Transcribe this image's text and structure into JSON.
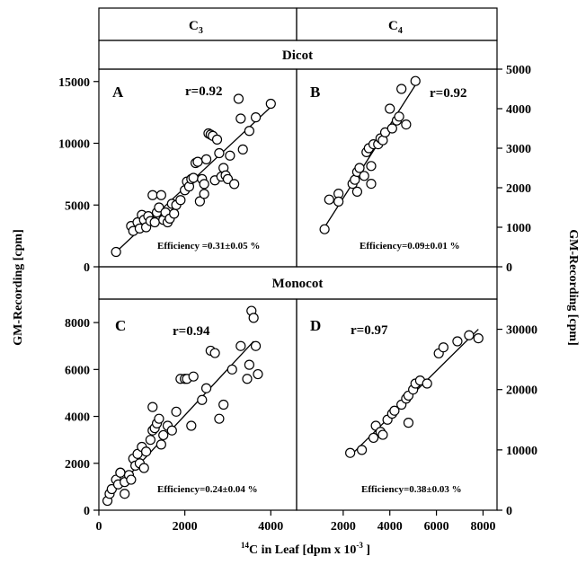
{
  "figure": {
    "header": {
      "col_left": "C",
      "col_left_sub": "3",
      "col_right": "C",
      "col_right_sub": "4"
    },
    "rows": {
      "top": "Dicot",
      "bottom": "Monocot"
    },
    "ylabel_left": "GM-Recording [cpm]",
    "ylabel_right": "GM-Recording [cpm]",
    "xlabel_prefix_sup": "14",
    "xlabel_main": "C in Leaf [dpm x 10",
    "xlabel_exp": "-3",
    "xlabel_close": " ]"
  },
  "chart_data": [
    {
      "panel": "A",
      "type": "scatter",
      "r_label": "r=0.92",
      "efficiency_label": "Efficiency =0.31±0.05 %",
      "xlim": [
        0,
        4600
      ],
      "ylim": [
        0,
        16000
      ],
      "yticks": [
        0,
        5000,
        10000,
        15000
      ],
      "xticks": [],
      "fit": [
        [
          400,
          1200
        ],
        [
          4050,
          13100
        ]
      ],
      "points": [
        [
          400,
          1200
        ],
        [
          750,
          3300
        ],
        [
          800,
          2900
        ],
        [
          900,
          3600
        ],
        [
          950,
          3100
        ],
        [
          1000,
          4200
        ],
        [
          1050,
          3800
        ],
        [
          1100,
          3200
        ],
        [
          1150,
          4100
        ],
        [
          1200,
          3700
        ],
        [
          1250,
          5800
        ],
        [
          1300,
          3600
        ],
        [
          1350,
          4400
        ],
        [
          1400,
          4800
        ],
        [
          1450,
          5800
        ],
        [
          1500,
          3800
        ],
        [
          1550,
          4400
        ],
        [
          1600,
          3600
        ],
        [
          1650,
          3900
        ],
        [
          1700,
          5100
        ],
        [
          1750,
          4300
        ],
        [
          1800,
          5000
        ],
        [
          1900,
          5400
        ],
        [
          2000,
          6200
        ],
        [
          2050,
          6900
        ],
        [
          2100,
          6500
        ],
        [
          2150,
          7100
        ],
        [
          2200,
          7200
        ],
        [
          2250,
          8400
        ],
        [
          2300,
          8500
        ],
        [
          2350,
          5300
        ],
        [
          2400,
          7100
        ],
        [
          2450,
          6700
        ],
        [
          2450,
          5900
        ],
        [
          2500,
          8700
        ],
        [
          2550,
          10800
        ],
        [
          2600,
          10700
        ],
        [
          2650,
          10600
        ],
        [
          2700,
          7000
        ],
        [
          2750,
          10300
        ],
        [
          2800,
          9200
        ],
        [
          2850,
          7300
        ],
        [
          2900,
          8000
        ],
        [
          2950,
          7400
        ],
        [
          3000,
          7100
        ],
        [
          3050,
          9000
        ],
        [
          3150,
          6700
        ],
        [
          3250,
          13600
        ],
        [
          3350,
          9500
        ],
        [
          3500,
          11000
        ],
        [
          3650,
          12100
        ],
        [
          4000,
          13200
        ],
        [
          3300,
          12000
        ]
      ]
    },
    {
      "panel": "B",
      "type": "scatter",
      "r_label": "r=0.92",
      "efficiency_label": "Efficiency=0.09±0.01 %",
      "xlim": [
        0,
        8600
      ],
      "ylim": [
        0,
        5000
      ],
      "yticks": [
        0,
        1000,
        2000,
        3000,
        4000,
        5000
      ],
      "xticks": [],
      "fit": [
        [
          1200,
          1000
        ],
        [
          5100,
          4600
        ]
      ],
      "points": [
        [
          1200,
          950
        ],
        [
          1400,
          1700
        ],
        [
          1800,
          1850
        ],
        [
          1800,
          1650
        ],
        [
          2400,
          2100
        ],
        [
          2500,
          2200
        ],
        [
          2600,
          2400
        ],
        [
          2700,
          2500
        ],
        [
          2900,
          2300
        ],
        [
          3000,
          2900
        ],
        [
          3100,
          3000
        ],
        [
          3200,
          2550
        ],
        [
          3200,
          2100
        ],
        [
          3300,
          3100
        ],
        [
          3500,
          3100
        ],
        [
          3600,
          3250
        ],
        [
          3700,
          3200
        ],
        [
          3800,
          3400
        ],
        [
          4000,
          4000
        ],
        [
          4100,
          3500
        ],
        [
          4300,
          3700
        ],
        [
          4400,
          3800
        ],
        [
          4500,
          4500
        ],
        [
          4700,
          3600
        ],
        [
          5100,
          4700
        ],
        [
          2600,
          1900
        ]
      ]
    },
    {
      "panel": "C",
      "type": "scatter",
      "r_label": "r=0.94",
      "efficiency_label": "Efficiency=0.24±0.04 %",
      "xlim": [
        0,
        4600
      ],
      "ylim": [
        0,
        9000
      ],
      "yticks": [
        0,
        2000,
        4000,
        6000,
        8000
      ],
      "xticks": [
        0,
        2000,
        4000
      ],
      "fit": [
        [
          200,
          500
        ],
        [
          3600,
          7200
        ]
      ],
      "points": [
        [
          200,
          400
        ],
        [
          250,
          700
        ],
        [
          300,
          900
        ],
        [
          400,
          1300
        ],
        [
          450,
          1100
        ],
        [
          500,
          1600
        ],
        [
          600,
          1200
        ],
        [
          700,
          1500
        ],
        [
          750,
          1300
        ],
        [
          800,
          2200
        ],
        [
          850,
          1900
        ],
        [
          900,
          2400
        ],
        [
          950,
          2000
        ],
        [
          1000,
          2700
        ],
        [
          1050,
          1800
        ],
        [
          1100,
          2500
        ],
        [
          1200,
          3000
        ],
        [
          1250,
          3400
        ],
        [
          1300,
          3500
        ],
        [
          1350,
          3700
        ],
        [
          1400,
          3900
        ],
        [
          1450,
          2800
        ],
        [
          1500,
          3200
        ],
        [
          1600,
          3600
        ],
        [
          1700,
          3400
        ],
        [
          1800,
          4200
        ],
        [
          1900,
          5600
        ],
        [
          2000,
          5600
        ],
        [
          2050,
          5600
        ],
        [
          2150,
          3600
        ],
        [
          2200,
          5700
        ],
        [
          2400,
          4700
        ],
        [
          2500,
          5200
        ],
        [
          2600,
          6800
        ],
        [
          2700,
          6700
        ],
        [
          2800,
          3900
        ],
        [
          2900,
          4500
        ],
        [
          3100,
          6000
        ],
        [
          3300,
          7000
        ],
        [
          3450,
          5600
        ],
        [
          3500,
          6200
        ],
        [
          3550,
          8500
        ],
        [
          3600,
          8200
        ],
        [
          3650,
          7000
        ],
        [
          3700,
          5800
        ],
        [
          500,
          1600
        ],
        [
          1250,
          4400
        ],
        [
          600,
          700
        ]
      ]
    },
    {
      "panel": "D",
      "type": "scatter",
      "r_label": "r=0.97",
      "efficiency_label": "Efficiency=0.38±0.03 %",
      "xlim": [
        0,
        8600
      ],
      "ylim": [
        0,
        35000
      ],
      "yticks": [
        0,
        10000,
        20000,
        30000
      ],
      "xticks": [
        2000,
        4000,
        6000,
        8000
      ],
      "fit": [
        [
          2300,
          9000
        ],
        [
          7800,
          30000
        ]
      ],
      "points": [
        [
          2300,
          9500
        ],
        [
          2800,
          10000
        ],
        [
          3300,
          12000
        ],
        [
          3400,
          14000
        ],
        [
          3600,
          13000
        ],
        [
          3700,
          12500
        ],
        [
          3900,
          15000
        ],
        [
          4100,
          16000
        ],
        [
          4200,
          16500
        ],
        [
          4500,
          17500
        ],
        [
          4700,
          18500
        ],
        [
          4800,
          19000
        ],
        [
          5000,
          20000
        ],
        [
          5100,
          21000
        ],
        [
          5300,
          21500
        ],
        [
          5600,
          21000
        ],
        [
          6100,
          26000
        ],
        [
          6300,
          27000
        ],
        [
          6900,
          28000
        ],
        [
          7400,
          29000
        ],
        [
          7800,
          28500
        ],
        [
          4800,
          14500
        ]
      ]
    }
  ]
}
